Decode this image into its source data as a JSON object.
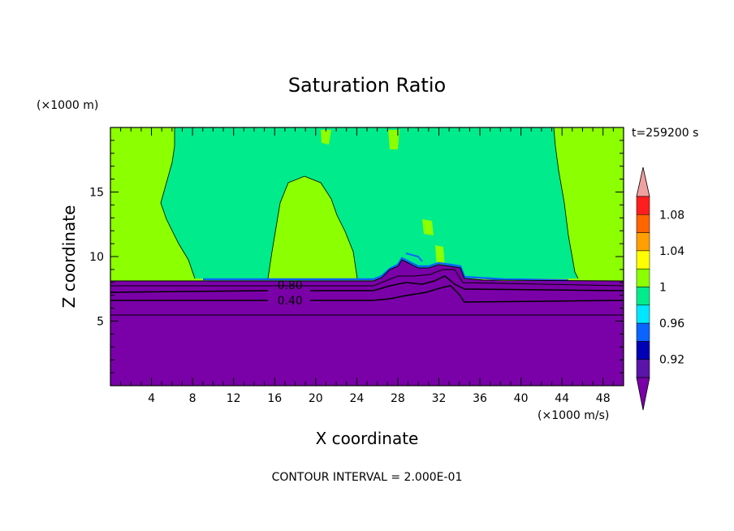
{
  "chart_data": {
    "type": "heatmap",
    "title": "Saturation Ratio",
    "xlabel": "X coordinate",
    "ylabel": "Z coordinate",
    "x_units": "(×1000 m/s)",
    "y_units": "(×1000 m)",
    "time_label": "t=259200 s",
    "contour_interval_label": "CONTOUR INTERVAL = 2.000E-01",
    "xlim": [
      0,
      50
    ],
    "ylim": [
      0,
      20
    ],
    "x_ticks": [
      4,
      8,
      12,
      16,
      20,
      24,
      28,
      32,
      36,
      40,
      44,
      48
    ],
    "y_ticks": [
      5,
      10,
      15
    ],
    "contour_labels": [
      {
        "text": "0.80",
        "x": 17.5,
        "y": 7.8
      },
      {
        "text": "0.40",
        "x": 17.5,
        "y": 6.6
      }
    ],
    "colorbar": {
      "bands": [
        {
          "lo": null,
          "hi": 0.9,
          "color": "#7a00a8"
        },
        {
          "lo": 0.9,
          "hi": 0.92,
          "color": "#5a14a8"
        },
        {
          "lo": 0.92,
          "hi": 0.94,
          "color": "#0000b4"
        },
        {
          "lo": 0.94,
          "hi": 0.96,
          "color": "#0a64ff"
        },
        {
          "lo": 0.96,
          "hi": 0.98,
          "color": "#00e6ff"
        },
        {
          "lo": 0.98,
          "hi": 1.0,
          "color": "#00eb8c"
        },
        {
          "lo": 1.0,
          "hi": 1.02,
          "color": "#8cff00"
        },
        {
          "lo": 1.02,
          "hi": 1.04,
          "color": "#ffff00"
        },
        {
          "lo": 1.04,
          "hi": 1.06,
          "color": "#ffa000"
        },
        {
          "lo": 1.06,
          "hi": 1.08,
          "color": "#ff6400"
        },
        {
          "lo": 1.08,
          "hi": 1.1,
          "color": "#ff1e1e"
        },
        {
          "lo": 1.1,
          "hi": null,
          "color": "#f0a0a0"
        }
      ],
      "tick_labels": [
        "0.92",
        "0.96",
        "1",
        "1.04",
        "1.08"
      ]
    }
  }
}
